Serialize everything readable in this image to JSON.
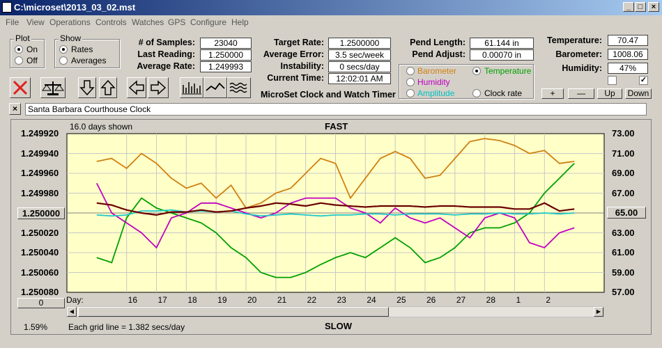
{
  "window": {
    "title": "C:\\microset\\2013_03_02.mst"
  },
  "menu": [
    "File",
    "View",
    "Operations",
    "Controls",
    "Watches",
    "GPS",
    "Configure",
    "Help"
  ],
  "plot_group": {
    "title": "Plot",
    "on": "On",
    "off": "Off",
    "selected": "On"
  },
  "show_group": {
    "title": "Show",
    "rates": "Rates",
    "averages": "Averages",
    "selected": "Rates"
  },
  "stats": {
    "samples_label": "# of Samples:",
    "samples": "23040",
    "last_label": "Last Reading:",
    "last": "1.250000",
    "avg_label": "Average Rate:",
    "avg": "1.249993",
    "target_label": "Target Rate:",
    "target": "1.2500000",
    "err_label": "Average Error:",
    "err": "3.5 sec/week",
    "inst_label": "Instability:",
    "inst": "0 secs/day",
    "time_label": "Current Time:",
    "time": "12:02:01 AM",
    "pend_label": "Pend Length:",
    "pend": "61.144 in",
    "adj_label": "Pend Adjust:",
    "adj": "0.00070 in",
    "temp_label": "Temperature:",
    "temp": "70.47",
    "baro_label": "Barometer:",
    "baro": "1008.06",
    "hum_label": "Humidity:",
    "hum": "47%"
  },
  "app_name": "MicroSet Clock and Watch Timer",
  "sensor_options": {
    "barometer": "Barometer",
    "temperature": "Temperature",
    "humidity": "Humidity",
    "amplitude": "Amplitude",
    "clock_rate": "Clock rate",
    "selected": "Temperature"
  },
  "sensor_colors": {
    "barometer": "#d08010",
    "temperature": "#00a000",
    "humidity": "#c000c0",
    "amplitude": "#00c0c0",
    "rate": "#6a0000"
  },
  "scale_buttons": {
    "plus": "+",
    "minus": "—",
    "up": "Up",
    "down": "Down"
  },
  "clock_name": "Santa Barbara Courthouse Clock",
  "close_label": "×",
  "chart_data": {
    "type": "line",
    "days_shown": "16.0 days shown",
    "top_label": "FAST",
    "bottom_label": "SLOW",
    "grid_note": "Each grid line = 1.382 secs/day",
    "percent": "1.59%",
    "left_ticks": [
      "1.249920",
      "1.249940",
      "1.249960",
      "1.249980",
      "1.250000",
      "1.250020",
      "1.250040",
      "1.250060",
      "1.250080"
    ],
    "right_ticks": [
      "73.00",
      "71.00",
      "69.00",
      "67.00",
      "65.00",
      "63.00",
      "61.00",
      "59.00",
      "57.00"
    ],
    "ylim_left": [
      1.24992,
      1.25008
    ],
    "ylim_right": [
      57,
      73
    ],
    "center_tick": "1.250000",
    "center_right": "65.00",
    "offset_value": "0",
    "day_label": "Day:",
    "day_ticks": [
      "16",
      "17",
      "18",
      "19",
      "20",
      "21",
      "22",
      "23",
      "24",
      "25",
      "26",
      "27",
      "28",
      "1",
      "2"
    ],
    "series": [
      {
        "name": "Barometer",
        "color": "#d08010",
        "axis": "right",
        "x": [
          15.0,
          15.5,
          16.0,
          16.5,
          17.0,
          17.5,
          18.0,
          18.5,
          19.0,
          19.5,
          20.0,
          20.5,
          21.0,
          21.5,
          22.0,
          22.5,
          23.0,
          23.5,
          24.0,
          24.5,
          25.0,
          25.5,
          26.0,
          26.5,
          27.0,
          27.5,
          28.0,
          28.5,
          29.0,
          29.5,
          30.0,
          30.5,
          31.0
        ],
        "values": [
          70.2,
          70.5,
          69.5,
          71.0,
          70.0,
          68.5,
          67.5,
          68.0,
          66.5,
          67.8,
          65.5,
          66.0,
          67.0,
          67.5,
          69.0,
          70.5,
          70.0,
          66.5,
          68.5,
          70.5,
          71.2,
          70.5,
          68.5,
          68.8,
          70.5,
          72.2,
          72.5,
          72.3,
          71.8,
          71.0,
          71.3,
          70.0,
          70.2
        ]
      },
      {
        "name": "Temperature",
        "color": "#00a000",
        "axis": "right",
        "x": [
          15.0,
          15.5,
          16.0,
          16.5,
          17.0,
          17.5,
          18.0,
          18.5,
          19.0,
          19.5,
          20.0,
          20.5,
          21.0,
          21.5,
          22.0,
          22.5,
          23.0,
          23.5,
          24.0,
          24.5,
          25.0,
          25.5,
          26.0,
          26.5,
          27.0,
          27.5,
          28.0,
          28.5,
          29.0,
          29.5,
          30.0,
          30.5,
          31.0
        ],
        "values": [
          60.5,
          60.0,
          64.5,
          66.5,
          65.5,
          65.0,
          64.5,
          64.0,
          63.0,
          61.5,
          60.5,
          59.0,
          58.5,
          58.5,
          59.0,
          59.8,
          60.5,
          61.0,
          60.5,
          61.5,
          62.5,
          61.5,
          60.0,
          60.5,
          61.5,
          63.0,
          63.5,
          63.5,
          64.0,
          65.0,
          67.0,
          68.5,
          70.0
        ]
      },
      {
        "name": "Humidity",
        "color": "#c000c0",
        "axis": "right",
        "x": [
          15.0,
          15.5,
          16.0,
          16.5,
          17.0,
          17.5,
          18.0,
          18.5,
          19.0,
          19.5,
          20.0,
          20.5,
          21.0,
          21.5,
          22.0,
          22.5,
          23.0,
          23.5,
          24.0,
          24.5,
          25.0,
          25.5,
          26.0,
          26.5,
          27.0,
          27.5,
          28.0,
          28.5,
          29.0,
          29.5,
          30.0,
          30.5,
          31.0
        ],
        "values": [
          68.0,
          65.0,
          64.0,
          63.0,
          61.5,
          64.5,
          65.0,
          66.0,
          66.0,
          65.5,
          65.0,
          64.5,
          65.0,
          66.0,
          66.5,
          66.5,
          66.5,
          65.5,
          65.0,
          64.0,
          65.5,
          64.5,
          64.0,
          64.5,
          63.5,
          62.5,
          64.5,
          65.0,
          64.5,
          62.0,
          61.5,
          63.0,
          63.5
        ]
      },
      {
        "name": "Amplitude",
        "color": "#20c8c8",
        "axis": "left",
        "x": [
          15.0,
          15.5,
          16.0,
          16.5,
          17.0,
          17.5,
          18.0,
          18.5,
          19.0,
          19.5,
          20.0,
          20.5,
          21.0,
          21.5,
          22.0,
          22.5,
          23.0,
          23.5,
          24.0,
          24.5,
          25.0,
          25.5,
          26.0,
          26.5,
          27.0,
          27.5,
          28.0,
          28.5,
          29.0,
          29.5,
          30.0,
          30.5,
          31.0
        ],
        "values": [
          1.250002,
          1.250003,
          1.250002,
          1.249998,
          1.249998,
          1.249997,
          1.249999,
          1.249998,
          1.249999,
          1.249998,
          1.250001,
          1.250003,
          1.250002,
          1.250001,
          1.250002,
          1.250003,
          1.250002,
          1.250002,
          1.250001,
          1.250001,
          1.250002,
          1.250001,
          1.250001,
          1.250001,
          1.250002,
          1.250001,
          1.250001,
          1.25,
          1.250001,
          1.250001,
          1.25,
          1.250001,
          1.25
        ]
      },
      {
        "name": "Rate",
        "color": "#6a0000",
        "axis": "left",
        "x": [
          15.0,
          15.5,
          16.0,
          16.5,
          17.0,
          17.5,
          18.0,
          18.5,
          19.0,
          19.5,
          20.0,
          20.5,
          21.0,
          21.5,
          22.0,
          22.5,
          23.0,
          23.5,
          24.0,
          24.5,
          25.0,
          25.5,
          26.0,
          26.5,
          27.0,
          27.5,
          28.0,
          28.5,
          29.0,
          29.5,
          30.0,
          30.5,
          31.0
        ],
        "values": [
          1.24999,
          1.249992,
          1.249997,
          1.25,
          1.250002,
          1.249999,
          1.249999,
          1.249997,
          1.249999,
          1.249998,
          1.249995,
          1.249993,
          1.24999,
          1.249991,
          1.249993,
          1.24999,
          1.249992,
          1.249993,
          1.249994,
          1.249993,
          1.249993,
          1.249993,
          1.249994,
          1.249993,
          1.249993,
          1.249994,
          1.249994,
          1.249994,
          1.249996,
          1.249996,
          1.24999,
          1.249998,
          1.249996
        ]
      }
    ]
  }
}
